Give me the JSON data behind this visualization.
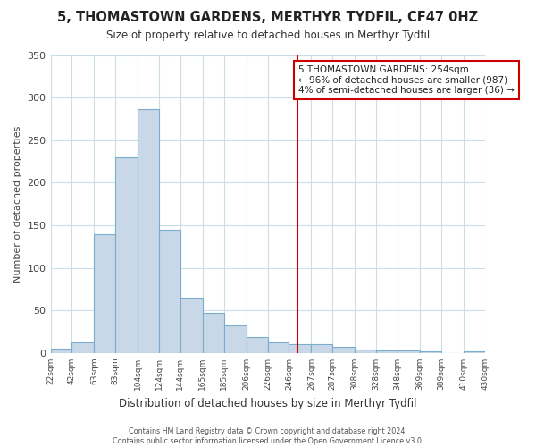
{
  "title": "5, THOMASTOWN GARDENS, MERTHYR TYDFIL, CF47 0HZ",
  "subtitle": "Size of property relative to detached houses in Merthyr Tydfil",
  "xlabel": "Distribution of detached houses by size in Merthyr Tydfil",
  "ylabel": "Number of detached properties",
  "bar_edges": [
    22,
    42,
    63,
    83,
    104,
    124,
    144,
    165,
    185,
    206,
    226,
    246,
    267,
    287,
    308,
    328,
    348,
    369,
    389,
    410,
    430
  ],
  "bar_heights": [
    5,
    13,
    140,
    230,
    286,
    145,
    65,
    47,
    32,
    19,
    12,
    10,
    10,
    7,
    4,
    3,
    3,
    2,
    0,
    2
  ],
  "bar_color": "#c8d8e8",
  "bar_edge_color": "#7aaccc",
  "vline_x": 254,
  "vline_color": "#cc0000",
  "annotation_title": "5 THOMASTOWN GARDENS: 254sqm",
  "annotation_line1": "← 96% of detached houses are smaller (987)",
  "annotation_line2": "4% of semi-detached houses are larger (36) →",
  "annotation_box_color": "#ffffff",
  "annotation_box_edge": "#cc0000",
  "ylim": [
    0,
    350
  ],
  "yticks": [
    0,
    50,
    100,
    150,
    200,
    250,
    300,
    350
  ],
  "tick_labels": [
    "22sqm",
    "42sqm",
    "63sqm",
    "83sqm",
    "104sqm",
    "124sqm",
    "144sqm",
    "165sqm",
    "185sqm",
    "206sqm",
    "226sqm",
    "246sqm",
    "267sqm",
    "287sqm",
    "308sqm",
    "328sqm",
    "348sqm",
    "369sqm",
    "389sqm",
    "410sqm",
    "430sqm"
  ],
  "footer_line1": "Contains HM Land Registry data © Crown copyright and database right 2024.",
  "footer_line2": "Contains public sector information licensed under the Open Government Licence v3.0.",
  "bg_color": "#ffffff",
  "grid_color": "#ccdde8"
}
